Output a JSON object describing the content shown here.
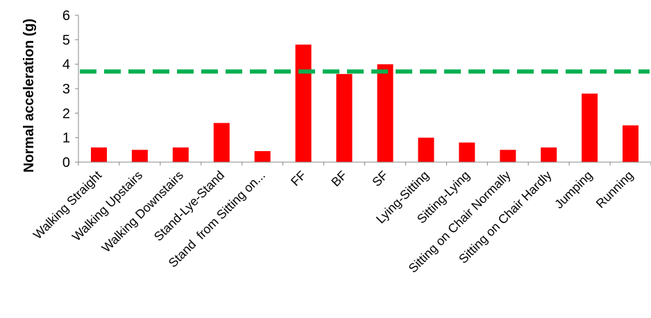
{
  "chart_data": {
    "type": "bar",
    "title": "",
    "xlabel": "",
    "ylabel": "Normal acceleration (g)",
    "ylim": [
      0,
      6
    ],
    "yticks": [
      0,
      1,
      2,
      3,
      4,
      5,
      6
    ],
    "grid": false,
    "legend": "none",
    "categories": [
      "Walking Straight",
      "Walking Upstairs",
      "Walking Downstairs",
      "Stand-Lye-Stand",
      "Stand  from Sitting on...",
      "FF",
      "BF",
      "SF",
      "Lying-Sitting",
      "Sitting-Lying",
      "Sitting on Chair Normally",
      "Sitting on Chair Hardly",
      "Jumping",
      "Running"
    ],
    "series": [
      {
        "values": [
          0.6,
          0.5,
          0.6,
          1.6,
          0.45,
          4.8,
          3.6,
          4.0,
          1.0,
          0.8,
          0.5,
          0.6,
          2.8,
          1.5
        ],
        "color": "#ff0000"
      }
    ],
    "threshold": {
      "value": 3.7,
      "color": "#00b050",
      "style": "dashed"
    }
  }
}
